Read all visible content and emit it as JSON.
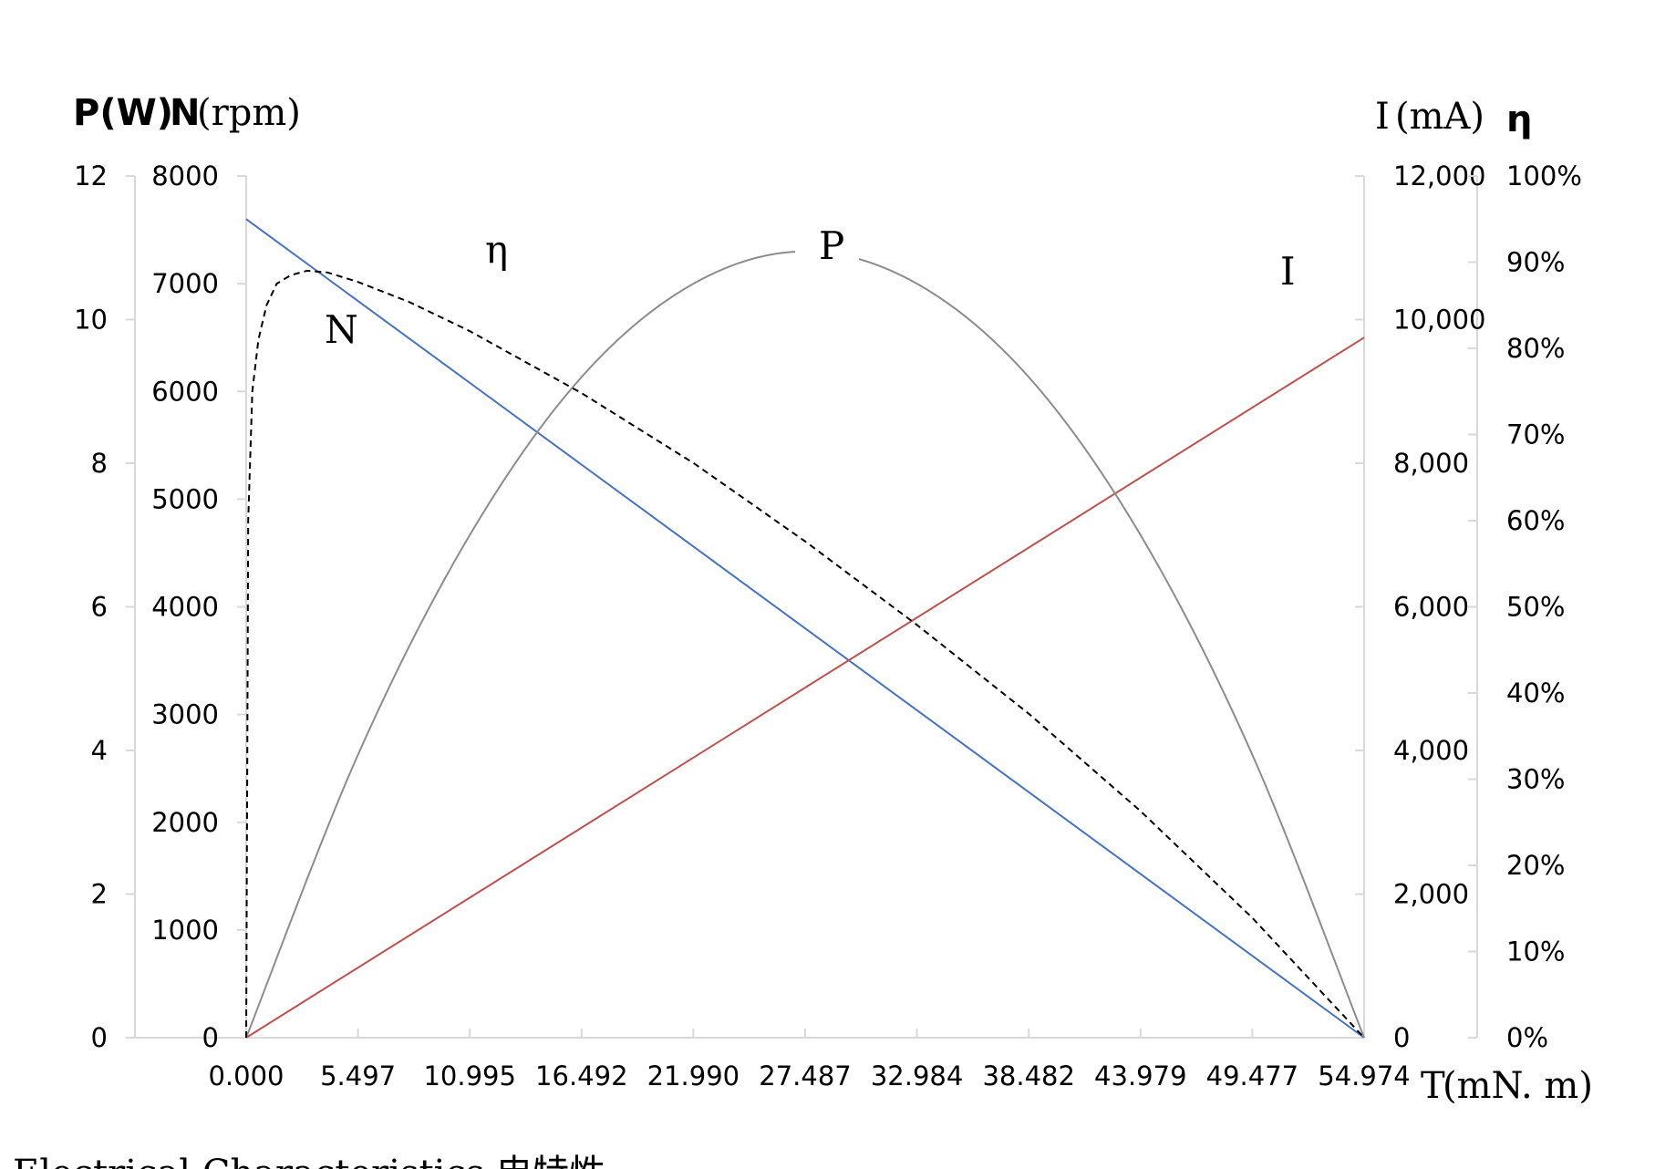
{
  "chart_data": {
    "type": "line",
    "x_axis": {
      "label_main": "T",
      "label_unit": "(mN. m)",
      "ticks": [
        "0.000",
        "5.497",
        "10.995",
        "16.492",
        "21.990",
        "27.487",
        "32.984",
        "38.482",
        "43.979",
        "49.477",
        "54.974"
      ],
      "range": [
        0,
        54.974
      ]
    },
    "header_left": {
      "p": "P(W)",
      "n_bold": "N",
      "n_unit": "(rpm)"
    },
    "header_right": {
      "i": "I",
      "i_unit": "(mA)",
      "eta": "η"
    },
    "axes": {
      "P": {
        "range": [
          0,
          12
        ],
        "ticks": [
          "0",
          "2",
          "4",
          "6",
          "8",
          "10",
          "12"
        ]
      },
      "N": {
        "range": [
          0,
          8000
        ],
        "ticks": [
          "0",
          "1000",
          "2000",
          "3000",
          "4000",
          "5000",
          "6000",
          "7000",
          "8000"
        ]
      },
      "I": {
        "range": [
          0,
          12000
        ],
        "ticks": [
          "0",
          "2,000",
          "4,000",
          "6,000",
          "8,000",
          "10,000",
          "12,000"
        ]
      },
      "eta": {
        "range": [
          0,
          100
        ],
        "ticks": [
          "0%",
          "10%",
          "20%",
          "30%",
          "40%",
          "50%",
          "60%",
          "70%",
          "80%",
          "90%",
          "100%"
        ]
      }
    },
    "series": [
      {
        "name": "N",
        "axis": "N",
        "color": "#4472c4",
        "style": "solid",
        "x": [
          0,
          54.974
        ],
        "values": [
          7600,
          0
        ]
      },
      {
        "name": "I",
        "axis": "I",
        "color": "#c0504d",
        "style": "solid",
        "x": [
          0,
          54.974
        ],
        "values": [
          0,
          9750
        ]
      },
      {
        "name": "P",
        "axis": "P",
        "color": "#8c8c8c",
        "style": "solid",
        "x": [
          0,
          5.497,
          10.995,
          16.492,
          21.99,
          27.487,
          32.984,
          38.482,
          43.979,
          49.477,
          54.974
        ],
        "values": [
          0,
          3.94,
          7.0,
          9.2,
          10.5,
          10.95,
          10.5,
          9.2,
          7.0,
          3.94,
          0
        ]
      },
      {
        "name": "η",
        "axis": "eta",
        "color": "#000000",
        "style": "dashed",
        "x": [
          0,
          0.1,
          0.3,
          0.6,
          1.0,
          1.5,
          2.2,
          3.0,
          4.0,
          5.497,
          8.0,
          10.995,
          16.492,
          21.99,
          27.487,
          32.984,
          38.482,
          43.979,
          49.477,
          54.974
        ],
        "values": [
          0,
          60,
          75,
          81,
          85,
          87.5,
          88.5,
          89,
          88.8,
          87.7,
          85.4,
          82,
          74.8,
          66.7,
          57.6,
          47.9,
          37.6,
          26.3,
          13.9,
          0
        ]
      }
    ],
    "curve_labels": {
      "eta": "η",
      "P": "P",
      "I": "I",
      "N": "N"
    },
    "grid": false
  },
  "footer_caption": "Electrical Characteristics 电特性"
}
